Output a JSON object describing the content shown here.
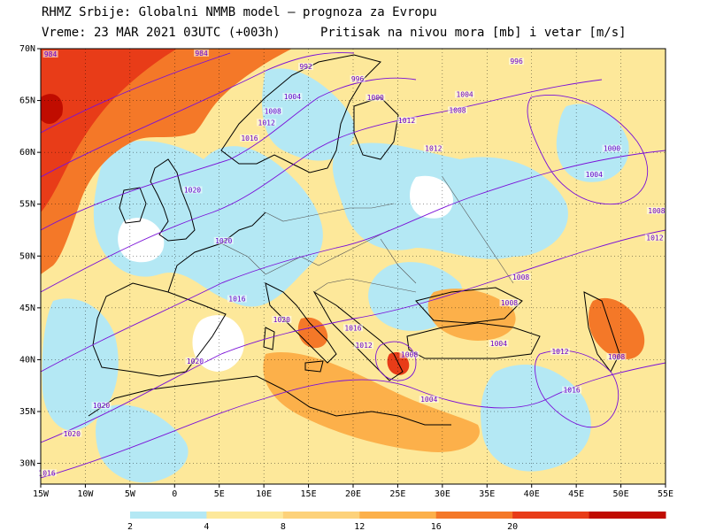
{
  "header": {
    "line1": "RHMZ Srbije: Globalni NMMB model — prognoza za Evropu",
    "line2_left": "Vreme: 23 MAR 2021 03UTC (+003h)",
    "line2_right": "Pritisak na nivou mora [mb] i vetar [m/s]"
  },
  "map": {
    "lon_range": [
      -15,
      55
    ],
    "lat_range": [
      28,
      70
    ],
    "lat_ticks": [
      "70N",
      "65N",
      "60N",
      "55N",
      "50N",
      "45N",
      "40N",
      "35N",
      "30N"
    ],
    "lon_ticks": [
      "15W",
      "10W",
      "5W",
      "0",
      "5E",
      "10E",
      "15E",
      "20E",
      "25E",
      "30E",
      "35E",
      "40E",
      "45E",
      "50E",
      "55E"
    ]
  },
  "isobar_labels": [
    {
      "text": "984",
      "lon": -13.9,
      "lat": 69.4
    },
    {
      "text": "984",
      "lon": 3.0,
      "lat": 69.5
    },
    {
      "text": "992",
      "lon": 14.7,
      "lat": 68.2
    },
    {
      "text": "996",
      "lon": 20.5,
      "lat": 67.0
    },
    {
      "text": "996",
      "lon": 38.3,
      "lat": 68.7
    },
    {
      "text": "1000",
      "lon": 22.5,
      "lat": 65.2
    },
    {
      "text": "1004",
      "lon": 13.2,
      "lat": 65.3
    },
    {
      "text": "1004",
      "lon": 32.5,
      "lat": 65.5
    },
    {
      "text": "1008",
      "lon": 11.0,
      "lat": 63.9
    },
    {
      "text": "1008",
      "lon": 31.7,
      "lat": 64.0
    },
    {
      "text": "1012",
      "lon": 26.0,
      "lat": 63.0
    },
    {
      "text": "1012",
      "lon": 10.3,
      "lat": 62.8
    },
    {
      "text": "1012",
      "lon": 29.0,
      "lat": 60.3
    },
    {
      "text": "1016",
      "lon": 8.4,
      "lat": 61.3
    },
    {
      "text": "1000",
      "lon": 49.0,
      "lat": 60.3
    },
    {
      "text": "1004",
      "lon": 47.0,
      "lat": 57.8
    },
    {
      "text": "1020",
      "lon": 2.0,
      "lat": 56.3
    },
    {
      "text": "1020",
      "lon": 5.5,
      "lat": 51.4
    },
    {
      "text": "1008",
      "lon": 54.0,
      "lat": 54.3
    },
    {
      "text": "1012",
      "lon": 53.8,
      "lat": 51.7
    },
    {
      "text": "1008",
      "lon": 38.8,
      "lat": 47.9
    },
    {
      "text": "1008",
      "lon": 37.5,
      "lat": 45.4
    },
    {
      "text": "1004",
      "lon": 36.3,
      "lat": 41.5
    },
    {
      "text": "1016",
      "lon": 7.0,
      "lat": 45.8
    },
    {
      "text": "1020",
      "lon": 12.0,
      "lat": 43.8
    },
    {
      "text": "1016",
      "lon": 20.0,
      "lat": 43.0
    },
    {
      "text": "1012",
      "lon": 21.2,
      "lat": 41.3
    },
    {
      "text": "1008",
      "lon": 26.3,
      "lat": 40.4
    },
    {
      "text": "1004",
      "lon": 28.5,
      "lat": 36.1
    },
    {
      "text": "1012",
      "lon": 43.2,
      "lat": 40.7
    },
    {
      "text": "1016",
      "lon": 44.5,
      "lat": 37.0
    },
    {
      "text": "1008",
      "lon": 49.5,
      "lat": 40.2
    },
    {
      "text": "1020",
      "lon": 2.3,
      "lat": 39.8
    },
    {
      "text": "1020",
      "lon": -8.2,
      "lat": 35.5
    },
    {
      "text": "1020",
      "lon": -11.5,
      "lat": 32.8
    },
    {
      "text": "1016",
      "lon": -14.3,
      "lat": 29.0
    }
  ],
  "colorbar": {
    "labels": [
      "2",
      "4",
      "8",
      "12",
      "16",
      "20"
    ],
    "colors": [
      "#b4e8f4",
      "#fde89a",
      "#fdd27a",
      "#fcb04a",
      "#f47828",
      "#e83c18",
      "#c00c00"
    ]
  }
}
